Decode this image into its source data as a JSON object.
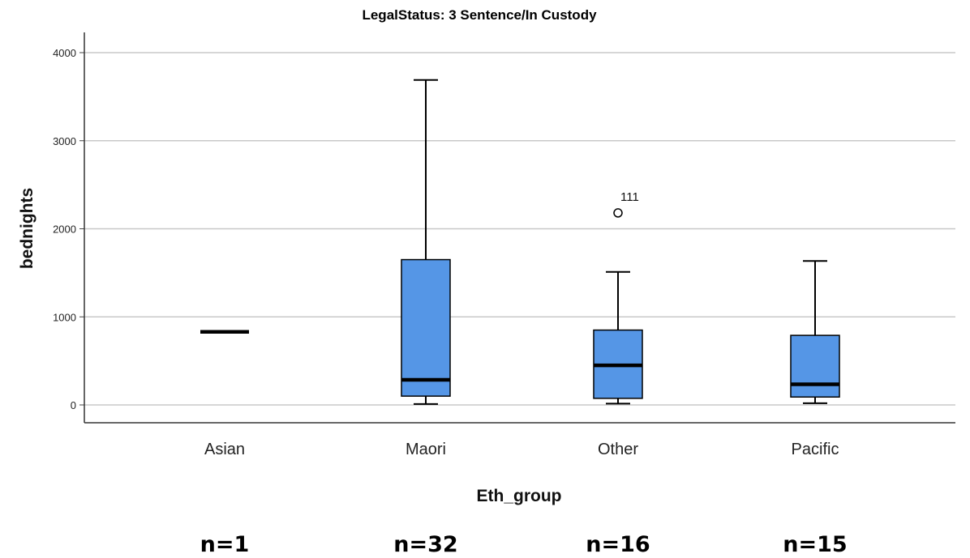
{
  "chart_data": {
    "type": "boxplot",
    "title": "LegalStatus: 3 Sentence/In Custody",
    "xlabel": "Eth_group",
    "ylabel": "bednights",
    "ylim": [
      -200,
      4400
    ],
    "yticks": [
      0,
      1000,
      2000,
      3000,
      4000
    ],
    "grid": true,
    "box_color": "#5596e6",
    "categories": [
      "Asian",
      "Maori",
      "Other",
      "Pacific"
    ],
    "boxes": [
      {
        "category": "Asian",
        "min": 830,
        "q1": 830,
        "median": 830,
        "q3": 830,
        "max": 830,
        "n_label": "n=1"
      },
      {
        "category": "Maori",
        "min": 10,
        "q1": 100,
        "median": 285,
        "q3": 1650,
        "max": 3690,
        "n_label": "n=32"
      },
      {
        "category": "Other",
        "min": 15,
        "q1": 75,
        "median": 450,
        "q3": 850,
        "max": 1510,
        "n_label": "n=16"
      },
      {
        "category": "Pacific",
        "min": 20,
        "q1": 90,
        "median": 235,
        "q3": 790,
        "max": 1635,
        "n_label": "n=15"
      }
    ],
    "outliers": [
      {
        "category": "Other",
        "value": 2180,
        "label": "111"
      }
    ]
  }
}
